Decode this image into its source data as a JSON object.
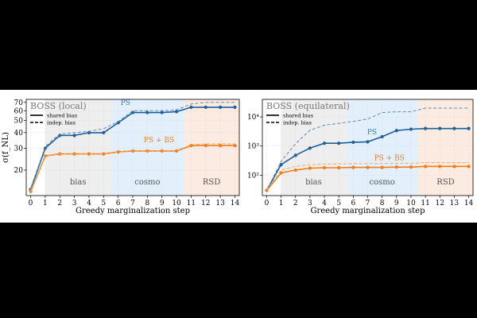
{
  "chart_data": [
    {
      "type": "line",
      "title": "BOSS (local)",
      "xlabel": "Greedy marginalization step",
      "ylabel": "σ(f_NL)",
      "yscale": "log",
      "ylim": [
        12.5,
        74
      ],
      "xlim": [
        -0.3,
        14.3
      ],
      "x": [
        0,
        1,
        2,
        3,
        4,
        5,
        6,
        7,
        8,
        9,
        10,
        11,
        12,
        13,
        14
      ],
      "y_ticks": [
        20,
        30,
        40,
        50,
        60,
        70
      ],
      "y_tick_labels": [
        "20",
        "30",
        "40",
        "50",
        "60",
        "70"
      ],
      "x_ticks": [
        0,
        1,
        2,
        3,
        4,
        5,
        6,
        7,
        8,
        9,
        10,
        11,
        12,
        13,
        14
      ],
      "x_tick_labels": [
        "0",
        "1",
        "2",
        "3",
        "4",
        "5",
        "6",
        "7",
        "8",
        "9",
        "10",
        "11",
        "12",
        "13",
        "14"
      ],
      "legend": {
        "position": "top-left",
        "entries": [
          "shared bias",
          "indep. bias"
        ]
      },
      "regions": [
        {
          "label": "bias",
          "from": 1,
          "to": 5.5,
          "color": "#eeeeee"
        },
        {
          "label": "cosmo",
          "from": 5.5,
          "to": 10.5,
          "color": "#e3f0fb"
        },
        {
          "label": "RSD",
          "from": 10.5,
          "to": 14.3,
          "color": "#fbebe0"
        }
      ],
      "series": [
        {
          "name": "PS shared bias",
          "label": "PS",
          "color": "#1f5f9a",
          "dashed": false,
          "markers": true,
          "values": [
            14,
            30,
            38,
            38,
            40,
            40,
            48,
            58,
            58,
            58,
            59,
            64,
            64,
            64,
            64
          ]
        },
        {
          "name": "PS indep. bias",
          "color": "#5b8db8",
          "dashed": true,
          "markers": false,
          "values": [
            14,
            31,
            39,
            40,
            41,
            43,
            49,
            60,
            60,
            60,
            61,
            68,
            70,
            70,
            70
          ]
        },
        {
          "name": "PS + BS shared bias",
          "label": "PS + BS",
          "color": "#f07d1a",
          "dashed": false,
          "markers": true,
          "values": [
            13.5,
            26,
            27,
            27,
            27,
            27,
            28,
            28.5,
            28.5,
            28.5,
            28.5,
            31.5,
            31.5,
            31.5,
            31.5
          ]
        },
        {
          "name": "PS + BS indep. bias",
          "color": "#f5a560",
          "dashed": true,
          "markers": false,
          "values": [
            13.5,
            26,
            27,
            27,
            27,
            27,
            28,
            28.5,
            28.5,
            28.5,
            28.5,
            32,
            32.5,
            32.5,
            32.5
          ]
        }
      ]
    },
    {
      "type": "line",
      "title": "BOSS (equilateral)",
      "xlabel": "Greedy marginalization step",
      "ylabel": "",
      "yscale": "log",
      "ylim": [
        20,
        40000
      ],
      "xlim": [
        -0.3,
        14.3
      ],
      "x": [
        0,
        1,
        2,
        3,
        4,
        5,
        6,
        7,
        8,
        9,
        10,
        11,
        12,
        13,
        14
      ],
      "y_ticks": [
        100,
        1000,
        10000
      ],
      "y_tick_labels": [
        "10²",
        "10³",
        "10⁴"
      ],
      "x_ticks": [
        0,
        1,
        2,
        3,
        4,
        5,
        6,
        7,
        8,
        9,
        10,
        11,
        12,
        13,
        14
      ],
      "x_tick_labels": [
        "0",
        "1",
        "2",
        "3",
        "4",
        "5",
        "6",
        "7",
        "8",
        "9",
        "10",
        "11",
        "12",
        "13",
        "14"
      ],
      "legend": {
        "position": "top-left",
        "entries": [
          "shared bias",
          "indep. bias"
        ]
      },
      "regions": [
        {
          "label": "bias",
          "from": 1,
          "to": 5.5,
          "color": "#eeeeee"
        },
        {
          "label": "cosmo",
          "from": 5.5,
          "to": 10.5,
          "color": "#e3f0fb"
        },
        {
          "label": "RSD",
          "from": 10.5,
          "to": 14.3,
          "color": "#fbebe0"
        }
      ],
      "series": [
        {
          "name": "PS shared bias",
          "label": "PS",
          "color": "#1f5f9a",
          "dashed": false,
          "markers": true,
          "values": [
            30,
            230,
            480,
            850,
            1250,
            1250,
            1350,
            1400,
            2100,
            3400,
            3800,
            4000,
            4000,
            4000,
            4000
          ]
        },
        {
          "name": "PS indep. bias",
          "color": "#5b8db8",
          "dashed": true,
          "markers": false,
          "values": [
            30,
            300,
            1200,
            3500,
            5200,
            6000,
            7000,
            8500,
            14000,
            15000,
            15000,
            20000,
            20000,
            20000,
            20000
          ]
        },
        {
          "name": "PS + BS shared bias",
          "label": "PS + BS",
          "color": "#f07d1a",
          "dashed": false,
          "markers": true,
          "values": [
            30,
            120,
            150,
            175,
            180,
            180,
            185,
            185,
            185,
            190,
            190,
            200,
            200,
            200,
            200
          ]
        },
        {
          "name": "PS + BS indep. bias",
          "color": "#f5a560",
          "dashed": true,
          "markers": false,
          "values": [
            30,
            150,
            200,
            230,
            240,
            245,
            250,
            250,
            250,
            255,
            255,
            270,
            270,
            270,
            270
          ]
        }
      ]
    }
  ]
}
